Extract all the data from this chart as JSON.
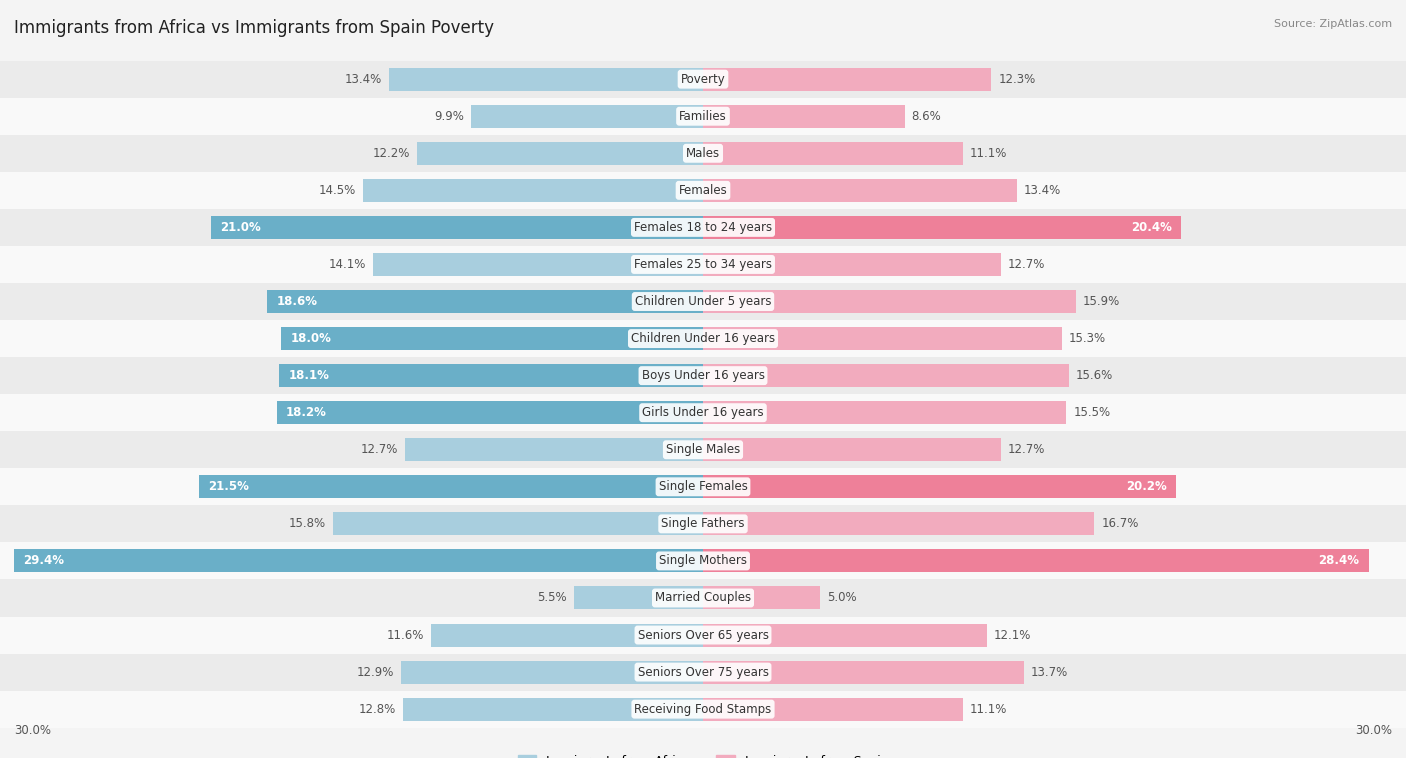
{
  "title": "Immigrants from Africa vs Immigrants from Spain Poverty",
  "source": "Source: ZipAtlas.com",
  "categories": [
    "Poverty",
    "Families",
    "Males",
    "Females",
    "Females 18 to 24 years",
    "Females 25 to 34 years",
    "Children Under 5 years",
    "Children Under 16 years",
    "Boys Under 16 years",
    "Girls Under 16 years",
    "Single Males",
    "Single Females",
    "Single Fathers",
    "Single Mothers",
    "Married Couples",
    "Seniors Over 65 years",
    "Seniors Over 75 years",
    "Receiving Food Stamps"
  ],
  "africa_values": [
    13.4,
    9.9,
    12.2,
    14.5,
    21.0,
    14.1,
    18.6,
    18.0,
    18.1,
    18.2,
    12.7,
    21.5,
    15.8,
    29.4,
    5.5,
    11.6,
    12.9,
    12.8
  ],
  "spain_values": [
    12.3,
    8.6,
    11.1,
    13.4,
    20.4,
    12.7,
    15.9,
    15.3,
    15.6,
    15.5,
    12.7,
    20.2,
    16.7,
    28.4,
    5.0,
    12.1,
    13.7,
    11.1
  ],
  "africa_color_light": "#A8CEDE",
  "africa_color_dark": "#6AAFC8",
  "spain_color_light": "#F2ABBE",
  "spain_color_dark": "#EE8099",
  "bg_color": "#f4f4f4",
  "row_color_even": "#ebebeb",
  "row_color_odd": "#f9f9f9",
  "max_value": 30.0,
  "bold_threshold_africa": 17.5,
  "bold_threshold_spain": 17.5,
  "label_fontsize": 8.5,
  "title_fontsize": 12,
  "source_fontsize": 8,
  "bar_height": 0.62
}
